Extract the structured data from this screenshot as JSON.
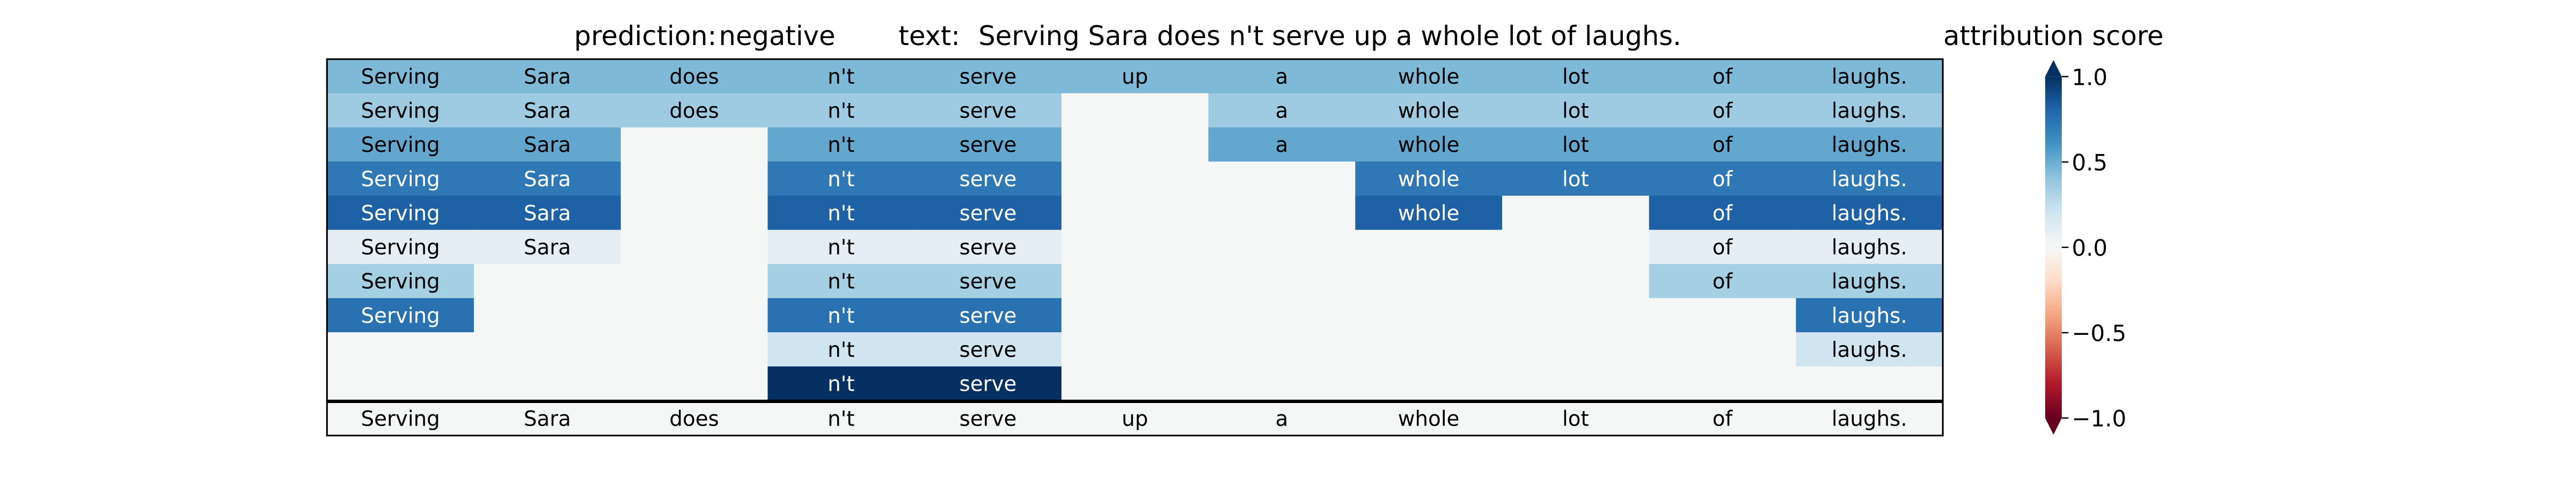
{
  "chart_data": {
    "type": "heatmap",
    "header": {
      "prediction_label": "prediction:",
      "prediction_value": "negative",
      "text_label": "text:",
      "text_value": "Serving Sara does n't serve up a whole lot of laughs."
    },
    "tokens": [
      "Serving",
      "Sara",
      "does",
      "n't",
      "serve",
      "up",
      "a",
      "whole",
      "lot",
      "of",
      "laughs."
    ],
    "rows": [
      [
        0.45,
        0.45,
        0.45,
        0.45,
        0.45,
        0.45,
        0.45,
        0.45,
        0.45,
        0.45,
        0.45
      ],
      [
        0.36,
        0.36,
        0.36,
        0.36,
        0.36,
        null,
        0.36,
        0.36,
        0.36,
        0.36,
        0.36
      ],
      [
        0.52,
        0.52,
        null,
        0.52,
        0.52,
        null,
        0.52,
        0.52,
        0.52,
        0.52,
        0.52
      ],
      [
        0.72,
        0.72,
        null,
        0.72,
        0.72,
        null,
        null,
        0.72,
        0.72,
        0.72,
        0.72
      ],
      [
        0.82,
        0.82,
        null,
        0.82,
        0.82,
        null,
        null,
        0.82,
        null,
        0.82,
        0.82
      ],
      [
        0.1,
        0.1,
        null,
        0.1,
        0.1,
        null,
        null,
        null,
        null,
        0.1,
        0.1
      ],
      [
        0.34,
        null,
        null,
        0.34,
        0.34,
        null,
        null,
        null,
        null,
        0.34,
        0.34
      ],
      [
        0.75,
        null,
        null,
        0.75,
        0.75,
        null,
        null,
        null,
        null,
        null,
        0.75
      ],
      [
        null,
        null,
        null,
        0.2,
        0.2,
        null,
        null,
        null,
        null,
        null,
        0.2
      ],
      [
        null,
        null,
        null,
        1.0,
        1.0,
        null,
        null,
        null,
        null,
        null,
        null
      ]
    ],
    "footer_tokens": [
      "Serving",
      "Sara",
      "does",
      "n't",
      "serve",
      "up",
      "a",
      "whole",
      "lot",
      "of",
      "laughs."
    ],
    "colorbar": {
      "label": "attribution score",
      "range": [
        -1.0,
        1.0
      ],
      "ticks": [
        1.0,
        0.5,
        0.0,
        -0.5,
        -1.0
      ],
      "tick_labels": [
        "1.0",
        "0.5",
        "0.0",
        "−0.5",
        "−1.0"
      ],
      "colormap": "RdBu"
    },
    "colors": {
      "empty_cell": "#f5f6f6",
      "frame": "#000000"
    }
  }
}
